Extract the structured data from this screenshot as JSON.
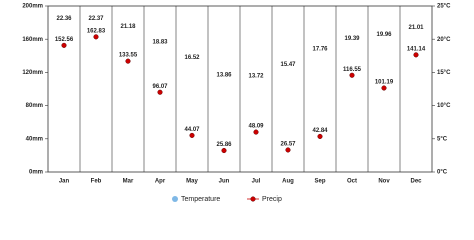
{
  "chart_data": {
    "type": "climate",
    "categories": [
      "Jan",
      "Feb",
      "Mar",
      "Apr",
      "May",
      "Jun",
      "Jul",
      "Aug",
      "Sep",
      "Oct",
      "Nov",
      "Dec"
    ],
    "series": [
      {
        "name": "Temperature",
        "color": "#7fb8e6",
        "axis": "y2",
        "values": [
          22.36,
          22.37,
          21.18,
          18.83,
          16.52,
          13.86,
          13.72,
          15.47,
          17.76,
          19.39,
          19.96,
          21.01
        ]
      },
      {
        "name": "Precip",
        "color": "#cc0000",
        "values": [
          152.56,
          162.83,
          133.55,
          96.07,
          44.07,
          25.86,
          48.09,
          26.57,
          42.84,
          116.55,
          101.19,
          141.14
        ]
      }
    ],
    "ylim": [
      0,
      200
    ],
    "yticks": [
      {
        "value": 0,
        "label": "0mm"
      },
      {
        "value": 40,
        "label": "40mm"
      },
      {
        "value": 80,
        "label": "80mm"
      },
      {
        "value": 120,
        "label": "120mm"
      },
      {
        "value": 160,
        "label": "160mm"
      },
      {
        "value": 200,
        "label": "200mm"
      }
    ],
    "y2lim": [
      0,
      25
    ],
    "y2ticks": [
      {
        "value": 0,
        "label": "0°C"
      },
      {
        "value": 5,
        "label": "5°C"
      },
      {
        "value": 10,
        "label": "10°C"
      },
      {
        "value": 15,
        "label": "15°C"
      },
      {
        "value": 20,
        "label": "20°C"
      },
      {
        "value": 25,
        "label": "25°C"
      }
    ]
  }
}
